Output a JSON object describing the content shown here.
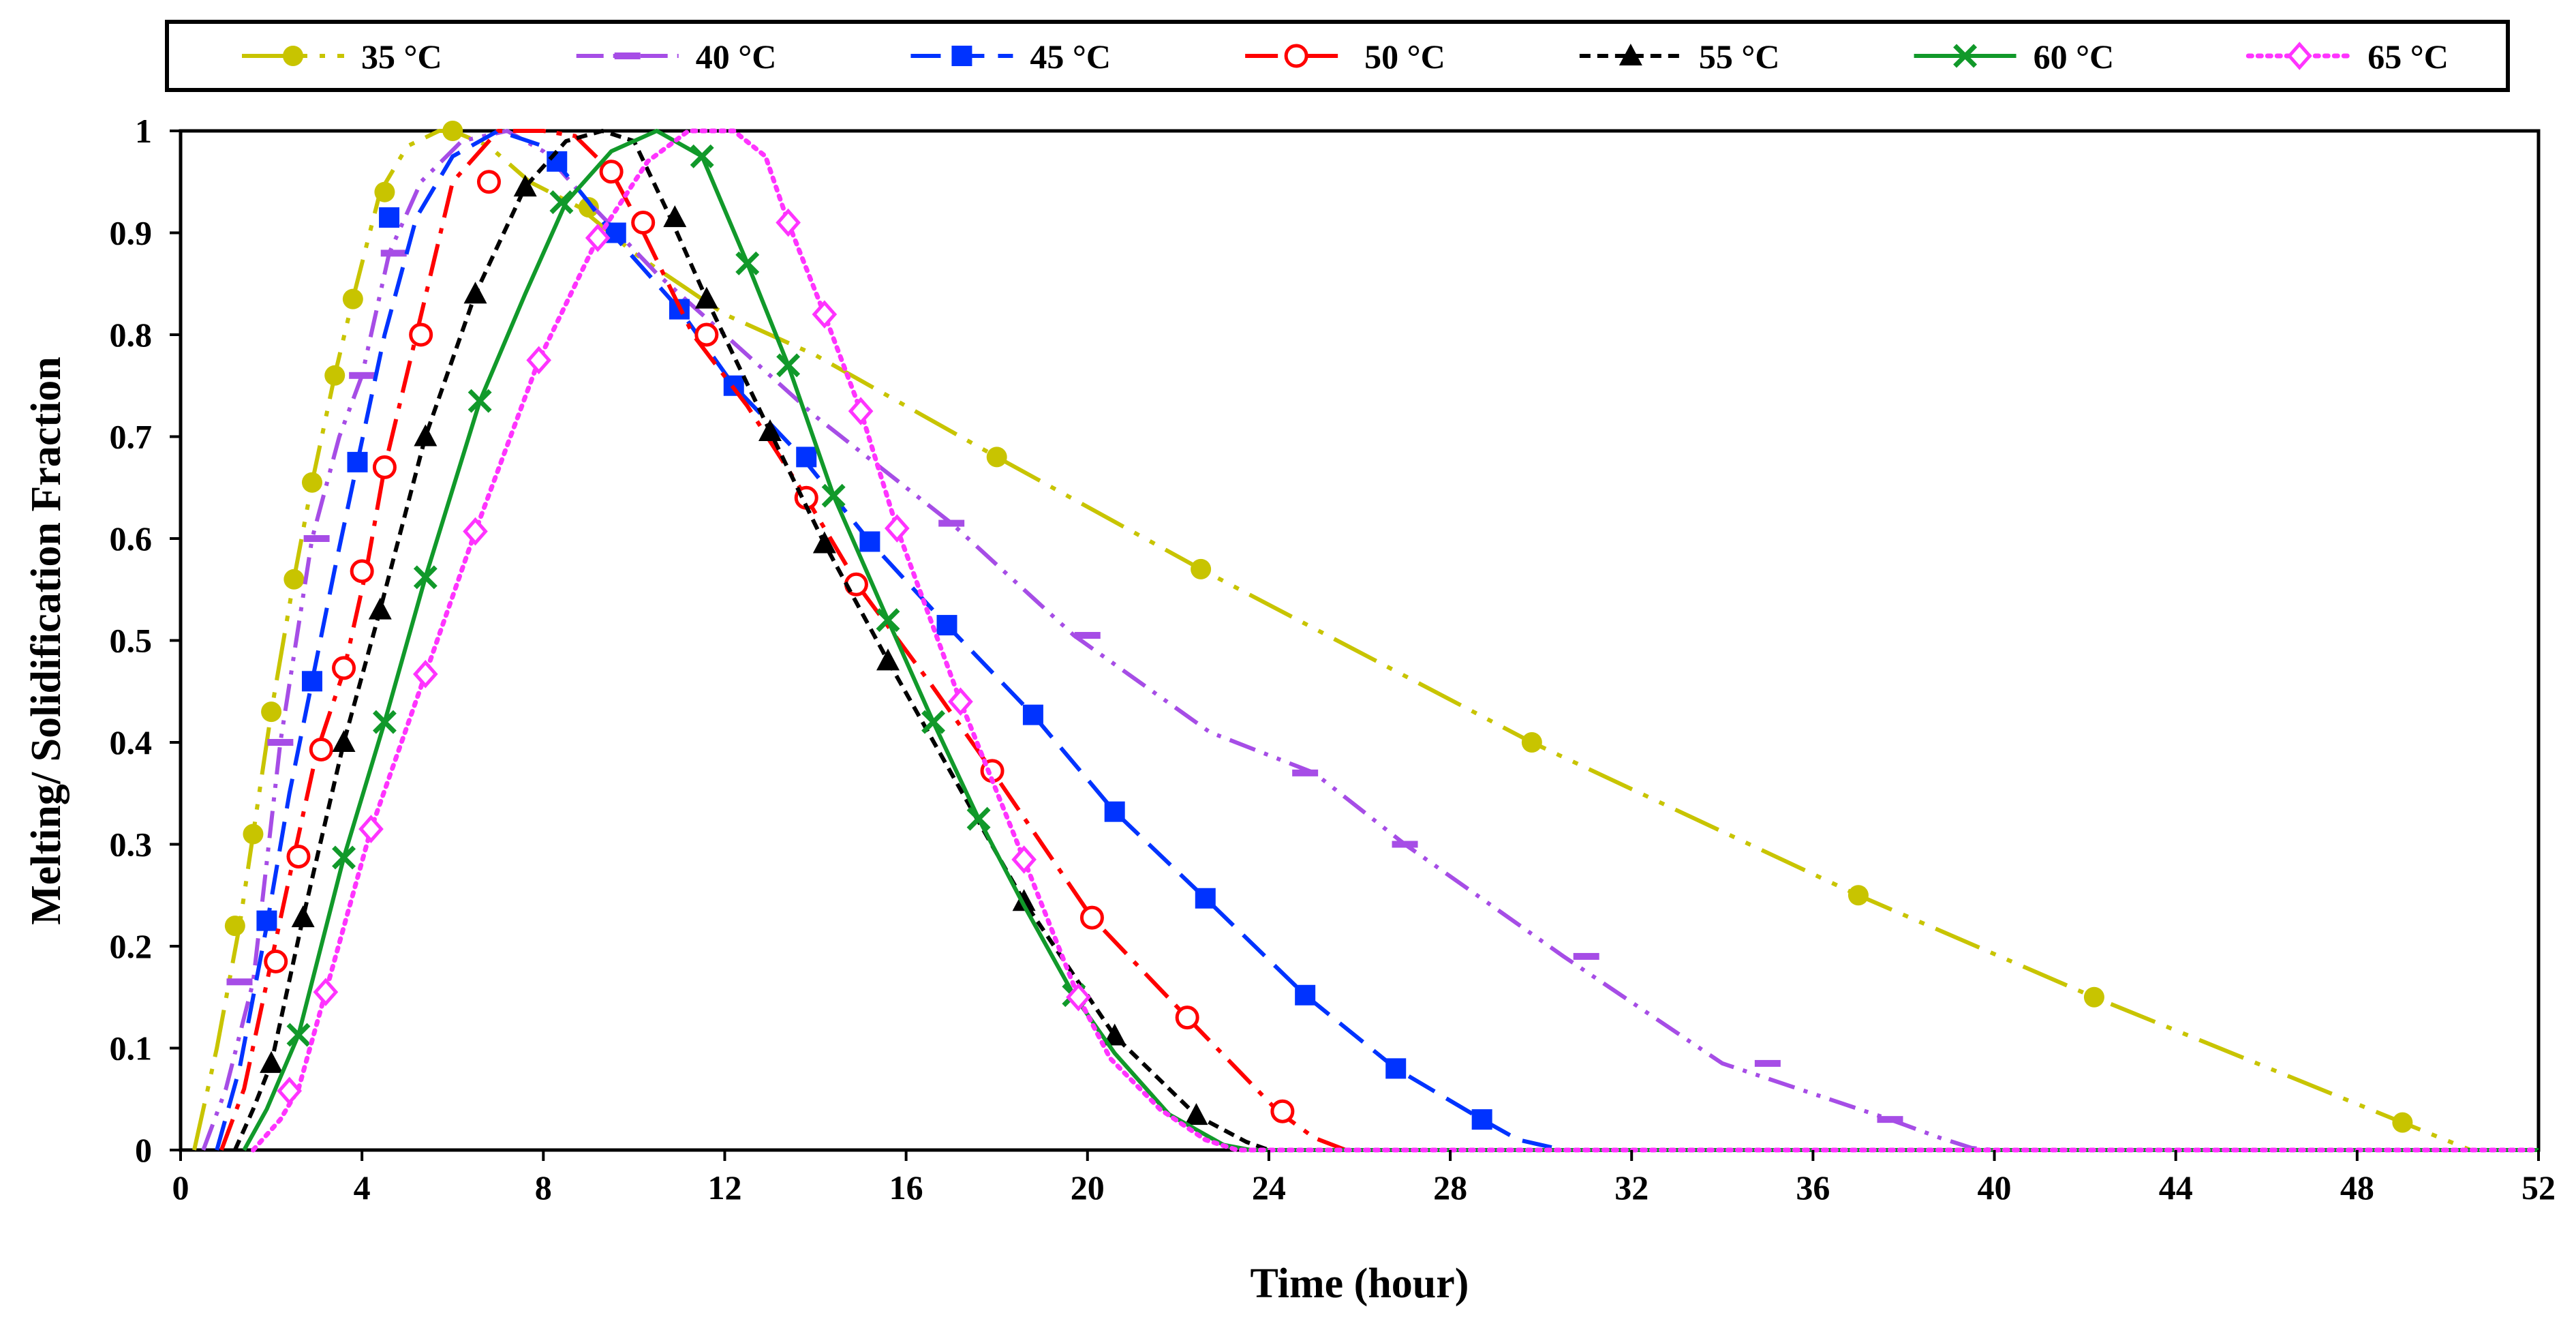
{
  "chart_data": {
    "type": "line",
    "title": "",
    "xlabel": "Time (hour)",
    "ylabel": "Melting/ Solidification  Fraction",
    "xlim": [
      0,
      52
    ],
    "ylim": [
      0,
      1
    ],
    "xticks": [
      "0",
      "4",
      "8",
      "12",
      "16",
      "20",
      "24",
      "28",
      "32",
      "36",
      "40",
      "44",
      "48",
      "52"
    ],
    "yticks": [
      "0",
      "0.1",
      "0.2",
      "0.3",
      "0.4",
      "0.5",
      "0.6",
      "0.7",
      "0.8",
      "0.9",
      "1"
    ],
    "grid": false,
    "legend_position": "top",
    "series": [
      {
        "name": "35 °C",
        "color": "#C8C400",
        "dash": "long-dash-dot-dot",
        "marker": "circle-filled",
        "x": [
          0.3,
          0.8,
          1.3,
          1.6,
          2.0,
          2.5,
          2.9,
          3.4,
          3.8,
          4.4,
          5.0,
          5.7,
          6.0,
          6.8,
          7.7,
          8.8,
          10.0,
          12.0,
          14.0,
          18.0,
          22.5,
          29.8,
          37.0,
          42.2,
          49.0,
          50.5,
          52.0
        ],
        "y": [
          0,
          0.1,
          0.22,
          0.31,
          0.43,
          0.56,
          0.655,
          0.76,
          0.835,
          0.94,
          0.985,
          1.0,
          1.0,
          0.985,
          0.95,
          0.925,
          0.88,
          0.82,
          0.78,
          0.68,
          0.57,
          0.4,
          0.25,
          0.15,
          0.027,
          0,
          0
        ],
        "markers_x": [
          1.2,
          1.6,
          2.0,
          2.5,
          2.9,
          3.4,
          3.8,
          4.5,
          6.0,
          9.0,
          18.0,
          22.5,
          29.8,
          37.0,
          42.2,
          49.0
        ],
        "markers_y": [
          0.22,
          0.31,
          0.43,
          0.56,
          0.655,
          0.76,
          0.835,
          0.94,
          1.0,
          0.925,
          0.68,
          0.57,
          0.4,
          0.25,
          0.15,
          0.027
        ]
      },
      {
        "name": "40 °C",
        "color": "#A64DE6",
        "dash": "dash-dot-dot",
        "marker": "dash",
        "x": [
          0.5,
          1.0,
          1.6,
          2.2,
          2.9,
          3.5,
          4.0,
          4.6,
          5.3,
          6.2,
          7.2,
          8.0,
          9.0,
          10.5,
          12.0,
          14.0,
          17.0,
          19.7,
          22.7,
          25.0,
          27.0,
          30.5,
          34.0,
          37.7,
          38.8,
          39.5,
          40.0,
          52.0
        ],
        "y": [
          0,
          0.06,
          0.165,
          0.4,
          0.6,
          0.7,
          0.76,
          0.88,
          0.95,
          0.99,
          1.0,
          0.98,
          0.93,
          0.86,
          0.8,
          0.72,
          0.615,
          0.505,
          0.41,
          0.37,
          0.3,
          0.19,
          0.085,
          0.03,
          0.012,
          0.002,
          0,
          0
        ],
        "markers_x": [
          1.3,
          2.2,
          3.0,
          4.0,
          4.7,
          17.0,
          20.0,
          24.8,
          27.0,
          31.0,
          35.0,
          37.7
        ],
        "markers_y": [
          0.165,
          0.4,
          0.6,
          0.76,
          0.88,
          0.615,
          0.505,
          0.37,
          0.3,
          0.19,
          0.085,
          0.03
        ]
      },
      {
        "name": "45 °C",
        "color": "#0033FF",
        "dash": "long-dash",
        "marker": "square-filled",
        "x": [
          0.8,
          1.3,
          1.9,
          2.4,
          2.9,
          3.4,
          3.9,
          4.5,
          5.2,
          6.0,
          7.0,
          8.0,
          9.0,
          9.5,
          11.0,
          12.2,
          13.7,
          15.2,
          16.9,
          18.8,
          20.6,
          22.6,
          24.8,
          26.8,
          28.7,
          29.5,
          30.5,
          52.0
        ],
        "y": [
          0,
          0.08,
          0.22,
          0.35,
          0.46,
          0.57,
          0.675,
          0.8,
          0.915,
          0.975,
          1.0,
          0.985,
          0.93,
          0.9,
          0.825,
          0.75,
          0.68,
          0.597,
          0.515,
          0.427,
          0.332,
          0.247,
          0.152,
          0.08,
          0.03,
          0.01,
          0,
          0
        ],
        "markers_x": [
          1.9,
          2.9,
          3.9,
          4.6,
          8.3,
          9.6,
          11.0,
          12.2,
          13.8,
          15.2,
          16.9,
          18.8,
          20.6,
          22.6,
          24.8,
          26.8,
          28.7
        ],
        "markers_y": [
          0.225,
          0.46,
          0.675,
          0.915,
          0.97,
          0.9,
          0.825,
          0.75,
          0.68,
          0.597,
          0.515,
          0.427,
          0.332,
          0.247,
          0.152,
          0.08,
          0.03
        ]
      },
      {
        "name": "50 °C",
        "color": "#FF0000",
        "dash": "long-dash-dot",
        "marker": "circle-open",
        "x": [
          0.9,
          1.4,
          2.0,
          2.5,
          3.0,
          3.6,
          4.1,
          4.5,
          5.2,
          6.0,
          7.0,
          8.0,
          8.7,
          9.5,
          10.1,
          11.3,
          12.5,
          13.8,
          15.0,
          16.5,
          17.9,
          20.1,
          22.2,
          24.2,
          25.0,
          25.7,
          52.0
        ],
        "y": [
          0,
          0.06,
          0.185,
          0.288,
          0.39,
          0.47,
          0.57,
          0.67,
          0.8,
          0.95,
          1.0,
          1.0,
          0.995,
          0.96,
          0.91,
          0.8,
          0.73,
          0.64,
          0.55,
          0.46,
          0.372,
          0.228,
          0.13,
          0.038,
          0.012,
          0,
          0
        ],
        "markers_x": [
          2.1,
          2.6,
          3.1,
          3.6,
          4.0,
          4.5,
          5.3,
          6.8,
          9.5,
          10.2,
          11.6,
          13.8,
          14.9,
          17.9,
          20.1,
          22.2,
          24.3
        ],
        "markers_y": [
          0.185,
          0.288,
          0.393,
          0.473,
          0.568,
          0.67,
          0.8,
          0.95,
          0.96,
          0.91,
          0.8,
          0.64,
          0.555,
          0.372,
          0.228,
          0.13,
          0.038
        ]
      },
      {
        "name": "55 °C",
        "color": "#000000",
        "dash": "short-dash",
        "marker": "triangle-filled",
        "x": [
          1.2,
          1.6,
          2.0,
          2.7,
          3.6,
          4.4,
          5.4,
          6.5,
          7.6,
          8.5,
          9.3,
          10.0,
          10.8,
          11.6,
          13.0,
          14.2,
          15.6,
          17.5,
          18.6,
          20.6,
          22.4,
          23.5,
          24.0,
          52.0
        ],
        "y": [
          0,
          0.04,
          0.085,
          0.228,
          0.4,
          0.53,
          0.7,
          0.84,
          0.945,
          0.99,
          1.0,
          0.99,
          0.915,
          0.835,
          0.705,
          0.595,
          0.48,
          0.33,
          0.244,
          0.112,
          0.034,
          0.008,
          0,
          0
        ],
        "markers_x": [
          2.0,
          2.7,
          3.6,
          4.4,
          5.4,
          6.5,
          7.6,
          10.9,
          11.6,
          13.0,
          14.2,
          15.6,
          18.6,
          20.6,
          22.4
        ],
        "markers_y": [
          0.085,
          0.228,
          0.4,
          0.53,
          0.7,
          0.84,
          0.945,
          0.915,
          0.835,
          0.705,
          0.595,
          0.48,
          0.244,
          0.112,
          0.034
        ]
      },
      {
        "name": "60 °C",
        "color": "#11992A",
        "dash": "solid",
        "marker": "x",
        "x": [
          1.4,
          1.9,
          2.6,
          3.6,
          4.5,
          5.4,
          6.6,
          7.6,
          8.5,
          9.5,
          10.5,
          11.5,
          12.5,
          13.4,
          14.4,
          15.6,
          16.6,
          17.6,
          18.6,
          19.7,
          20.6,
          21.8,
          23.0,
          23.6,
          52.0
        ],
        "y": [
          0,
          0.04,
          0.113,
          0.287,
          0.42,
          0.562,
          0.735,
          0.84,
          0.93,
          0.98,
          1.0,
          0.975,
          0.87,
          0.77,
          0.642,
          0.52,
          0.42,
          0.325,
          0.24,
          0.152,
          0.095,
          0.035,
          0.005,
          0,
          0
        ],
        "markers_x": [
          2.6,
          3.6,
          4.5,
          5.4,
          6.6,
          8.4,
          11.5,
          12.5,
          13.4,
          14.4,
          15.6,
          16.6,
          17.6,
          19.7
        ],
        "markers_y": [
          0.113,
          0.287,
          0.42,
          0.562,
          0.735,
          0.93,
          0.975,
          0.87,
          0.77,
          0.642,
          0.52,
          0.42,
          0.325,
          0.152
        ]
      },
      {
        "name": "65 °C",
        "color": "#FF33FF",
        "dash": "dotted",
        "marker": "diamond-open",
        "x": [
          1.6,
          2.2,
          2.6,
          3.2,
          4.2,
          5.4,
          6.5,
          7.9,
          9.2,
          10.3,
          11.2,
          12.2,
          12.9,
          13.4,
          14.2,
          15.0,
          15.8,
          17.2,
          18.6,
          19.8,
          20.5,
          21.6,
          22.6,
          23.3,
          52.0
        ],
        "y": [
          0,
          0.03,
          0.06,
          0.155,
          0.315,
          0.467,
          0.607,
          0.775,
          0.895,
          0.97,
          1.0,
          1.0,
          0.975,
          0.91,
          0.82,
          0.725,
          0.61,
          0.44,
          0.285,
          0.15,
          0.09,
          0.04,
          0.01,
          0,
          0
        ],
        "markers_x": [
          2.4,
          3.2,
          4.2,
          5.4,
          6.5,
          7.9,
          9.2,
          13.4,
          14.2,
          15.0,
          15.8,
          17.2,
          18.6,
          19.8
        ],
        "markers_y": [
          0.058,
          0.155,
          0.315,
          0.467,
          0.607,
          0.775,
          0.895,
          0.91,
          0.82,
          0.725,
          0.61,
          0.44,
          0.285,
          0.15
        ]
      }
    ]
  }
}
